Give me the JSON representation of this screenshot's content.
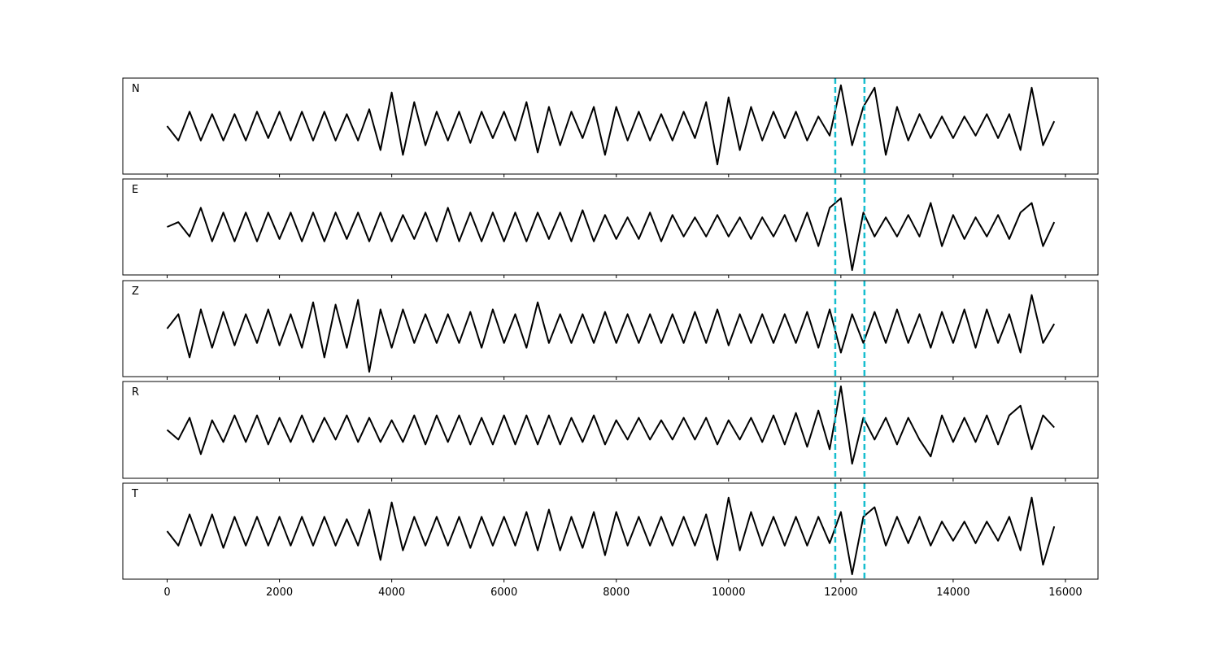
{
  "chart_data": {
    "type": "line",
    "subplots": true,
    "color": "#000000",
    "x": [
      0,
      200,
      400,
      600,
      800,
      1000,
      1200,
      1400,
      1600,
      1800,
      2000,
      2200,
      2400,
      2600,
      2800,
      3000,
      3200,
      3400,
      3600,
      3800,
      4000,
      4200,
      4400,
      4600,
      4800,
      5000,
      5200,
      5400,
      5600,
      5800,
      6000,
      6200,
      6400,
      6600,
      6800,
      7000,
      7200,
      7400,
      7600,
      7800,
      8000,
      8200,
      8400,
      8600,
      8800,
      9000,
      9200,
      9400,
      9600,
      9800,
      10000,
      10200,
      10400,
      10600,
      10800,
      11000,
      11200,
      11400,
      11600,
      11800,
      12000,
      12200,
      12400,
      12600,
      12800,
      13000,
      13200,
      13400,
      13600,
      13800,
      14000,
      14200,
      14400,
      14600,
      14800,
      15000,
      15200,
      15400,
      15600,
      15800
    ],
    "xlim": [
      -790,
      16580
    ],
    "xticks": [
      0,
      2000,
      4000,
      6000,
      8000,
      10000,
      12000,
      14000,
      16000
    ],
    "ylim": [
      -1,
      1
    ],
    "vlines": [
      11900,
      12420
    ],
    "vline_color": "#17becf",
    "series": [
      {
        "name": "N",
        "values": [
          0,
          -0.3,
          0.3,
          -0.3,
          0.25,
          -0.3,
          0.25,
          -0.3,
          0.3,
          -0.25,
          0.3,
          -0.3,
          0.3,
          -0.3,
          0.3,
          -0.3,
          0.25,
          -0.3,
          0.35,
          -0.5,
          0.7,
          -0.6,
          0.5,
          -0.4,
          0.3,
          -0.3,
          0.3,
          -0.35,
          0.3,
          -0.25,
          0.3,
          -0.3,
          0.5,
          -0.55,
          0.4,
          -0.4,
          0.3,
          -0.25,
          0.4,
          -0.6,
          0.4,
          -0.3,
          0.3,
          -0.3,
          0.25,
          -0.3,
          0.3,
          -0.25,
          0.5,
          -0.8,
          0.6,
          -0.5,
          0.4,
          -0.3,
          0.3,
          -0.25,
          0.3,
          -0.3,
          0.2,
          -0.2,
          0.85,
          -0.4,
          0.4,
          0.8,
          -0.6,
          0.4,
          -0.3,
          0.25,
          -0.25,
          0.2,
          -0.25,
          0.2,
          -0.2,
          0.25,
          -0.25,
          0.25,
          -0.5,
          0.8,
          -0.4,
          0.1
        ]
      },
      {
        "name": "E",
        "values": [
          0,
          0.1,
          -0.2,
          0.4,
          -0.3,
          0.3,
          -0.3,
          0.3,
          -0.3,
          0.3,
          -0.25,
          0.3,
          -0.3,
          0.3,
          -0.3,
          0.3,
          -0.25,
          0.3,
          -0.3,
          0.3,
          -0.3,
          0.25,
          -0.25,
          0.3,
          -0.3,
          0.4,
          -0.3,
          0.3,
          -0.3,
          0.3,
          -0.3,
          0.3,
          -0.3,
          0.3,
          -0.25,
          0.3,
          -0.3,
          0.35,
          -0.3,
          0.25,
          -0.25,
          0.2,
          -0.25,
          0.3,
          -0.3,
          0.25,
          -0.2,
          0.2,
          -0.2,
          0.25,
          -0.2,
          0.2,
          -0.25,
          0.2,
          -0.2,
          0.25,
          -0.3,
          0.3,
          -0.4,
          0.4,
          0.6,
          -0.9,
          0.3,
          -0.2,
          0.2,
          -0.2,
          0.25,
          -0.2,
          0.5,
          -0.4,
          0.25,
          -0.25,
          0.2,
          -0.2,
          0.25,
          -0.25,
          0.3,
          0.5,
          -0.4,
          0.1
        ]
      },
      {
        "name": "Z",
        "values": [
          0,
          0.3,
          -0.6,
          0.4,
          -0.4,
          0.35,
          -0.35,
          0.3,
          -0.3,
          0.4,
          -0.35,
          0.3,
          -0.4,
          0.55,
          -0.6,
          0.5,
          -0.4,
          0.6,
          -0.9,
          0.4,
          -0.4,
          0.4,
          -0.3,
          0.3,
          -0.3,
          0.3,
          -0.3,
          0.35,
          -0.4,
          0.4,
          -0.3,
          0.3,
          -0.4,
          0.55,
          -0.3,
          0.3,
          -0.3,
          0.3,
          -0.3,
          0.35,
          -0.3,
          0.3,
          -0.3,
          0.3,
          -0.3,
          0.3,
          -0.3,
          0.35,
          -0.3,
          0.4,
          -0.35,
          0.3,
          -0.3,
          0.3,
          -0.3,
          0.3,
          -0.3,
          0.35,
          -0.4,
          0.4,
          -0.5,
          0.3,
          -0.3,
          0.35,
          -0.3,
          0.4,
          -0.3,
          0.3,
          -0.4,
          0.35,
          -0.3,
          0.4,
          -0.4,
          0.4,
          -0.3,
          0.3,
          -0.5,
          0.7,
          -0.3,
          0.1
        ]
      },
      {
        "name": "R",
        "values": [
          0,
          -0.2,
          0.25,
          -0.5,
          0.2,
          -0.25,
          0.3,
          -0.25,
          0.3,
          -0.3,
          0.25,
          -0.25,
          0.3,
          -0.25,
          0.25,
          -0.2,
          0.3,
          -0.25,
          0.25,
          -0.25,
          0.2,
          -0.25,
          0.3,
          -0.3,
          0.3,
          -0.25,
          0.3,
          -0.3,
          0.25,
          -0.3,
          0.3,
          -0.3,
          0.3,
          -0.3,
          0.3,
          -0.3,
          0.25,
          -0.25,
          0.3,
          -0.3,
          0.2,
          -0.2,
          0.25,
          -0.2,
          0.2,
          -0.2,
          0.25,
          -0.2,
          0.25,
          -0.3,
          0.2,
          -0.2,
          0.25,
          -0.25,
          0.3,
          -0.3,
          0.35,
          -0.35,
          0.4,
          -0.4,
          0.9,
          -0.7,
          0.25,
          -0.2,
          0.25,
          -0.3,
          0.25,
          -0.2,
          -0.55,
          0.3,
          -0.25,
          0.25,
          -0.25,
          0.3,
          -0.3,
          0.3,
          0.5,
          -0.4,
          0.3,
          0.05
        ]
      },
      {
        "name": "T",
        "values": [
          0,
          -0.3,
          0.35,
          -0.3,
          0.35,
          -0.35,
          0.3,
          -0.3,
          0.3,
          -0.3,
          0.3,
          -0.3,
          0.3,
          -0.3,
          0.3,
          -0.3,
          0.25,
          -0.3,
          0.45,
          -0.6,
          0.6,
          -0.4,
          0.3,
          -0.3,
          0.3,
          -0.3,
          0.3,
          -0.35,
          0.3,
          -0.3,
          0.3,
          -0.3,
          0.4,
          -0.4,
          0.45,
          -0.4,
          0.3,
          -0.35,
          0.4,
          -0.5,
          0.4,
          -0.3,
          0.3,
          -0.3,
          0.3,
          -0.3,
          0.3,
          -0.3,
          0.35,
          -0.6,
          0.7,
          -0.4,
          0.4,
          -0.3,
          0.3,
          -0.3,
          0.3,
          -0.3,
          0.3,
          -0.25,
          0.4,
          -0.9,
          0.3,
          0.5,
          -0.3,
          0.3,
          -0.25,
          0.3,
          -0.3,
          0.2,
          -0.2,
          0.2,
          -0.25,
          0.2,
          -0.2,
          0.3,
          -0.4,
          0.7,
          -0.7,
          0.1
        ]
      }
    ]
  }
}
